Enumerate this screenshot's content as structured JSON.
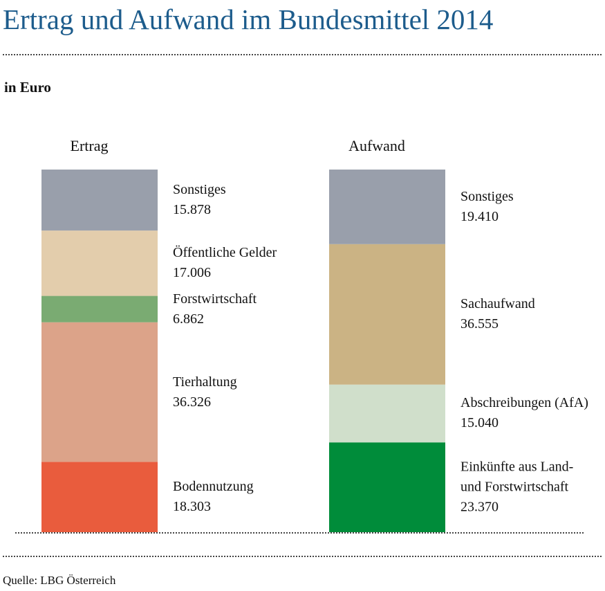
{
  "title": "Ertrag und Aufwand im Bundesmittel 2014",
  "unit": "in Euro",
  "source": "Quelle: LBG Österreich",
  "chart_data": [
    {
      "type": "stacked_bar",
      "title": "Ertrag",
      "series": [
        {
          "name": "Bodennutzung",
          "color": "#e95c3d",
          "values": [
            18303
          ],
          "value_labels": [
            "18.303"
          ]
        },
        {
          "name": "Tierhaltung",
          "color": "#dca389",
          "values": [
            36326
          ],
          "value_labels": [
            "36.326"
          ]
        },
        {
          "name": "Forstwirtschaft",
          "color": "#7aab72",
          "values": [
            6862
          ],
          "value_labels": [
            "6.862"
          ]
        },
        {
          "name": "Öffentliche Gelder",
          "color": "#e3cdac",
          "values": [
            17006
          ],
          "value_labels": [
            "17.006"
          ]
        },
        {
          "name": "Sonstiges",
          "color": "#999fab",
          "values": [
            15878
          ],
          "value_labels": [
            "15.878"
          ]
        }
      ]
    },
    {
      "type": "stacked_bar",
      "title": "Aufwand",
      "series": [
        {
          "name": "Einkünfte aus Land- und Forstwirtschaft",
          "color": "#008c3a",
          "values": [
            23370
          ],
          "value_labels": [
            "23.370"
          ]
        },
        {
          "name": "Abschreibungen (AfA)",
          "color": "#d0dfcb",
          "values": [
            15040
          ],
          "value_labels": [
            "15.040"
          ]
        },
        {
          "name": "Sachaufwand",
          "color": "#cbb384",
          "values": [
            36555
          ],
          "value_labels": [
            "36.555"
          ]
        },
        {
          "name": "Sonstiges",
          "color": "#999fab",
          "values": [
            19410
          ],
          "value_labels": [
            "19.410"
          ]
        }
      ]
    }
  ]
}
